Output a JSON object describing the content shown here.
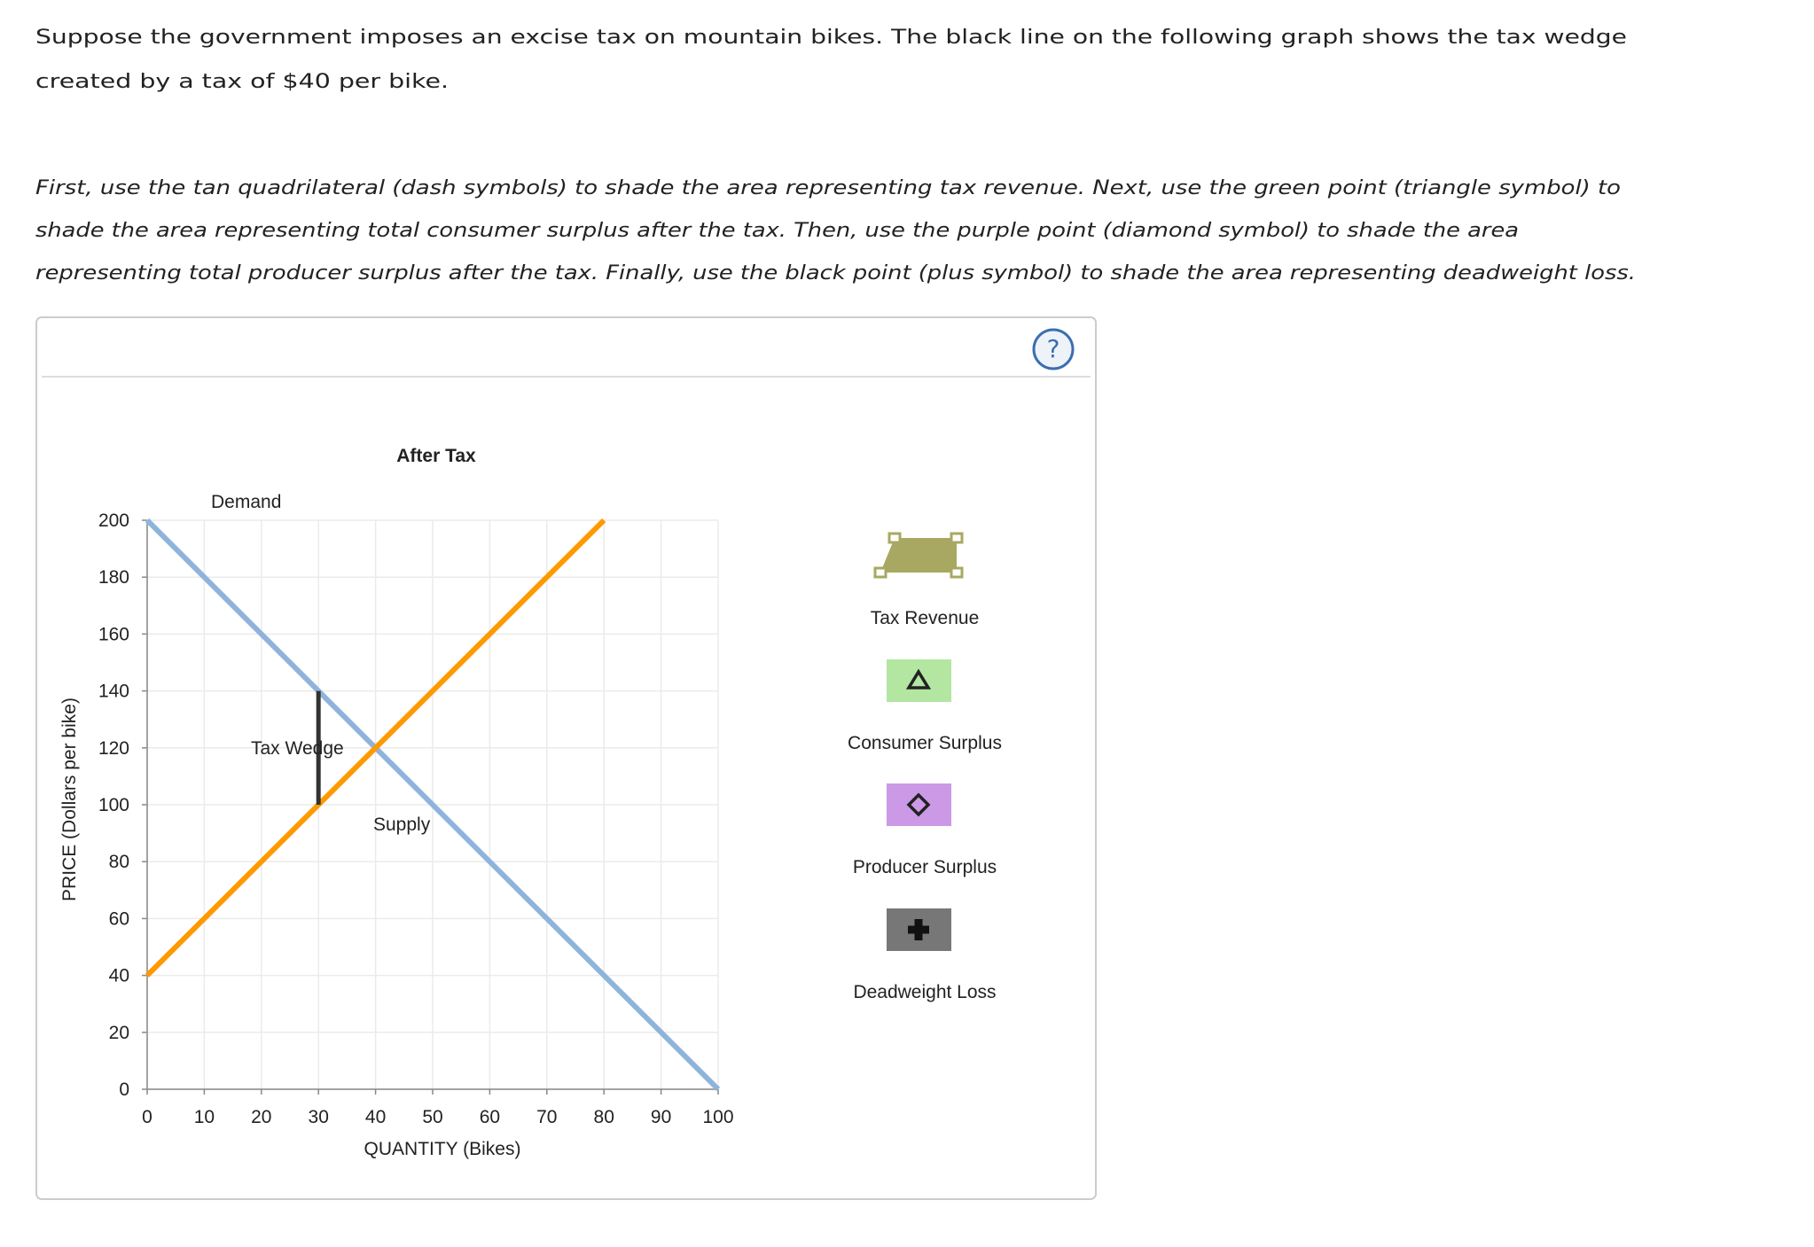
{
  "instructions": {
    "paragraph_1": [
      "Suppose the government imposes an excise tax on mountain bikes. The black line on the following graph shows the tax wedge",
      "created by a tax of $40 per bike."
    ],
    "paragraph_2": [
      "First, use the tan quadrilateral (dash symbols) to shade the area representing tax revenue. Next, use the green point (triangle symbol) to",
      "shade the area representing total consumer surplus after the tax. Then, use the purple point (diamond symbol) to shade the area",
      "representing total producer surplus after the tax. Finally, use the black point (plus symbol) to shade the area representing deadweight loss."
    ]
  },
  "chart_data": {
    "type": "line",
    "title": "After Tax",
    "x_label": "QUANTITY (Bikes)",
    "y_label": "PRICE (Dollars per bike)",
    "xlim": [
      0,
      100
    ],
    "ylim": [
      0,
      200
    ],
    "xticks": [
      0,
      10,
      20,
      30,
      40,
      50,
      60,
      70,
      80,
      90,
      100
    ],
    "yticks": [
      0,
      20,
      40,
      60,
      80,
      100,
      120,
      140,
      160,
      180,
      200
    ],
    "grid": true,
    "series": [
      {
        "name": "Demand",
        "color": "#8fb4dc",
        "x": [
          0,
          100
        ],
        "values": [
          200,
          0
        ]
      },
      {
        "name": "Supply",
        "color": "#ff9900",
        "x": [
          0,
          80
        ],
        "values": [
          40,
          200
        ]
      },
      {
        "name": "Tax Wedge",
        "color": "#333333",
        "x": [
          30,
          30
        ],
        "values": [
          140,
          100
        ]
      }
    ]
  },
  "tools": [
    {
      "label": "Tax Revenue",
      "color": "#a8a862"
    },
    {
      "label": "Consumer Surplus",
      "color": "#b3e6a1"
    },
    {
      "label": "Producer Surplus",
      "color": "#cc99e6"
    },
    {
      "label": "Deadweight Loss",
      "color": "#777777"
    }
  ]
}
